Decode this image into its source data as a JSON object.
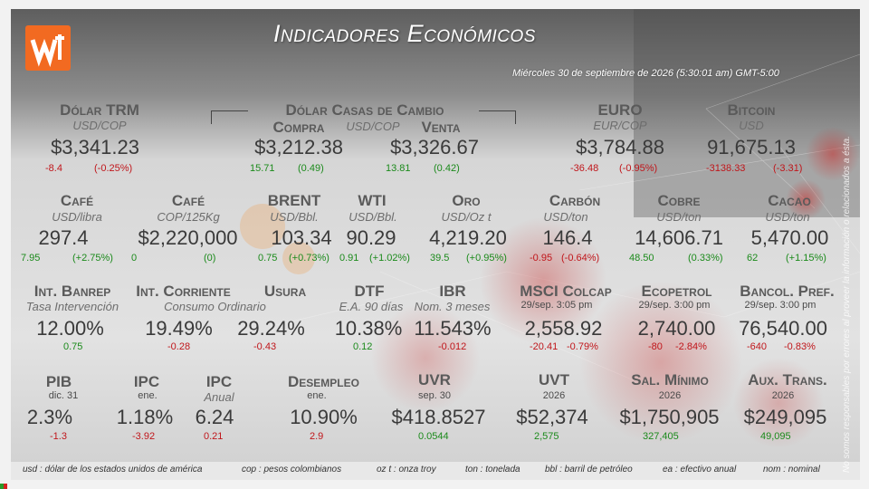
{
  "header": {
    "title": "Indicadores Económicos",
    "date": "Miércoles 30 de septiembre de 2026 (5:30:01 am) GMT-5:00",
    "brand_color": "#f26a21"
  },
  "dolar_trm": {
    "label": "Dólar TRM",
    "unit": "USD/COP",
    "value": "$3,341.23",
    "change": "-8.4",
    "pct": "(-0.25%)"
  },
  "casas": {
    "label": "Dólar Casas de Cambio",
    "unit": "USD/COP",
    "compra": {
      "label": "Compra",
      "value": "$3,212.38",
      "change": "15.71",
      "pct": "(0.49)"
    },
    "venta": {
      "label": "Venta",
      "value": "$3,326.67",
      "change": "13.81",
      "pct": "(0.42)"
    }
  },
  "euro": {
    "label": "EURO",
    "unit": "EUR/COP",
    "value": "$3,784.88",
    "change": "-36.48",
    "pct": "(-0.95%)"
  },
  "bitcoin": {
    "label": "Bitcoin",
    "unit": "USD",
    "value": "91,675.13",
    "change": "-3138.33",
    "pct": "(-3.31)"
  },
  "row2": [
    {
      "label": "Café",
      "unit": "USD/libra",
      "value": "297.4",
      "change": "7.95",
      "pct": "(+2.75%)",
      "dir": "pos"
    },
    {
      "label": "Café",
      "unit": "COP/125Kg",
      "value": "$2,220,000",
      "change": "0",
      "pct": "(0)",
      "dir": "pos"
    },
    {
      "label": "BRENT",
      "unit": "USD/Bbl.",
      "value": "103.34",
      "change": "0.75",
      "pct": "(+0.73%)",
      "dir": "pos"
    },
    {
      "label": "WTI",
      "unit": "USD/Bbl.",
      "value": "90.29",
      "change": "0.91",
      "pct": "(+1.02%)",
      "dir": "pos"
    },
    {
      "label": "Oro",
      "unit": "USD/Oz t",
      "value": "4,219.20",
      "change": "39.5",
      "pct": "(+0.95%)",
      "dir": "pos"
    },
    {
      "label": "Carbón",
      "unit": "USD/ton",
      "value": "146.4",
      "change": "-0.95",
      "pct": "(-0.64%)",
      "dir": "neg"
    },
    {
      "label": "Cobre",
      "unit": "USD/ton",
      "value": "14,606.71",
      "change": "48.50",
      "pct": "(0.33%)",
      "dir": "pos"
    },
    {
      "label": "Cacao",
      "unit": "USD/ton",
      "value": "5,470.00",
      "change": "62",
      "pct": "(+1.15%)",
      "dir": "pos"
    }
  ],
  "row3": [
    {
      "label": "Int. Banrep",
      "unit": "Tasa Intervención",
      "value": "12.00%",
      "change": "0.75",
      "dir": "pos"
    },
    {
      "label": "Int. Corriente",
      "unit": "Consumo Ordinario",
      "value": "19.49%",
      "change": "-0.28",
      "dir": "neg"
    },
    {
      "label": "Usura",
      "unit": "",
      "value": "29.24%",
      "change": "-0.43",
      "dir": "neg"
    },
    {
      "label": "DTF",
      "unit": "E.A. 90 días",
      "value": "10.38%",
      "change": "0.12",
      "dir": "pos"
    },
    {
      "label": "IBR",
      "unit": "Nom. 3 meses",
      "value": "11.543%",
      "change": "-0.012",
      "dir": "neg"
    },
    {
      "label": "MSCI Colcap",
      "unit": "29/sep. 3:05 pm",
      "value": "2,558.92",
      "change": "-20.41",
      "pct": "-0.79%",
      "dir": "neg"
    },
    {
      "label": "Ecopetrol",
      "unit": "29/sep. 3:00 pm",
      "value": "2,740.00",
      "change": "-80",
      "pct": "-2.84%",
      "dir": "neg"
    },
    {
      "label": "Bancol. Pref.",
      "unit": "29/sep. 3:00 pm",
      "value": "76,540.00",
      "change": "-640",
      "pct": "-0.83%",
      "dir": "neg"
    }
  ],
  "row4": [
    {
      "label": "PIB",
      "unit": "dic. 31",
      "value": "2.3%",
      "change": "-1.3",
      "dir": "neg"
    },
    {
      "label": "IPC",
      "unit": "ene.",
      "value": "1.18%",
      "change": "-3.92",
      "dir": "neg"
    },
    {
      "label": "IPC",
      "unit": "Anual",
      "value": "6.24",
      "change": "0.21",
      "dir": "neg"
    },
    {
      "label": "Desempleo",
      "unit": "ene.",
      "value": "10.90%",
      "change": "2.9",
      "dir": "neg"
    },
    {
      "label": "UVR",
      "unit": "sep. 30",
      "value": "$418.8527",
      "change": "0.0544",
      "dir": "pos"
    },
    {
      "label": "UVT",
      "unit": "2026",
      "value": "$52,374",
      "change": "2,575",
      "dir": "pos"
    },
    {
      "label": "Sal. Mínimo",
      "unit": "2026",
      "value": "$1,750,905",
      "change": "327,405",
      "dir": "pos"
    },
    {
      "label": "Aux. Trans.",
      "unit": "2026",
      "value": "$249,095",
      "change": "49,095",
      "dir": "pos"
    }
  ],
  "legend": [
    "usd : dólar de los estados unidos de américa",
    "cop : pesos colombianos",
    "oz t : onza troy",
    "ton : tonelada",
    "bbl : barril de petróleo",
    "ea : efectivo anual",
    "nom : nominal"
  ],
  "disclaimer": "No somos responsables por errores al proveer la información o relacionados a ésta."
}
